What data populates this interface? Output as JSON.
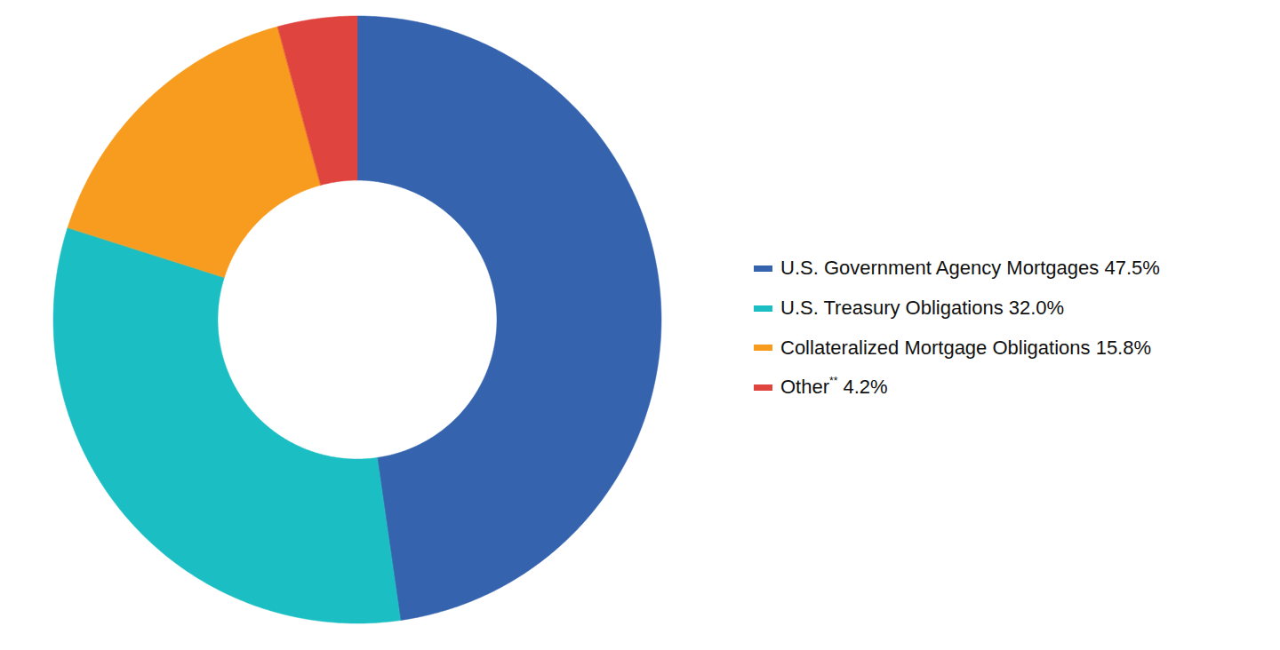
{
  "chart_data": {
    "type": "donut",
    "categories": [
      "U.S. Government Agency Mortgages",
      "U.S. Treasury Obligations",
      "Collateralized Mortgage Obligations",
      "Other**"
    ],
    "values": [
      47.5,
      32.0,
      15.8,
      4.2
    ],
    "value_labels": [
      "47.5%",
      "32.0%",
      "15.8%",
      "4.2%"
    ],
    "colors": [
      "#3563ae",
      "#1bbec3",
      "#f79c1f",
      "#e0443e"
    ],
    "legend": "right"
  }
}
